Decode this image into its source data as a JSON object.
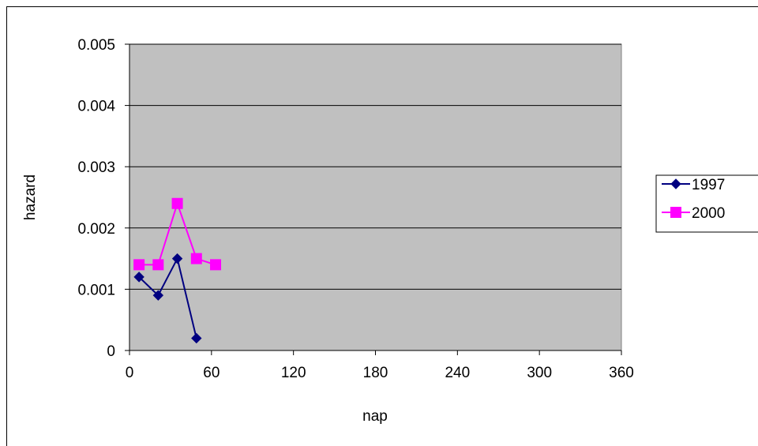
{
  "chart_data": {
    "type": "line",
    "title": "",
    "xlabel": "nap",
    "ylabel": "hazard",
    "xlim": [
      0,
      360
    ],
    "ylim": [
      0,
      0.005
    ],
    "xticks": [
      "0",
      "60",
      "120",
      "180",
      "240",
      "300",
      "360"
    ],
    "yticks": [
      "0",
      "0.001",
      "0.002",
      "0.003",
      "0.004",
      "0.005"
    ],
    "grid": "horizontal",
    "legend_position": "right",
    "plot_background": "#C0C0C0",
    "series": [
      {
        "name": "1997",
        "color": "#000080",
        "marker": "diamond",
        "x": [
          7,
          21,
          35,
          49
        ],
        "y": [
          0.0012,
          0.0009,
          0.0015,
          0.0002
        ]
      },
      {
        "name": "2000",
        "color": "#FF00FF",
        "marker": "square",
        "x": [
          7,
          21,
          35,
          49,
          63
        ],
        "y": [
          0.0014,
          0.0014,
          0.0024,
          0.0015,
          0.0014
        ]
      }
    ]
  }
}
